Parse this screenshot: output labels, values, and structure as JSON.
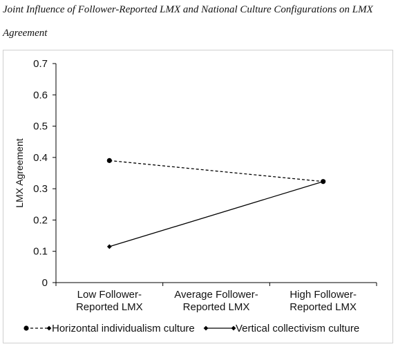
{
  "caption": {
    "line1": "Joint Influence of Follower-Reported LMX and National Culture Configurations on LMX",
    "line2": "Agreement"
  },
  "chart_data": {
    "type": "line",
    "categories": [
      [
        "Low Follower-",
        "Reported LMX"
      ],
      [
        "Average Follower-",
        "Reported LMX"
      ],
      [
        "High Follower-",
        "Reported LMX"
      ]
    ],
    "ylabel": "LMX Agreement",
    "xlabel": "",
    "ylim": [
      0,
      0.7
    ],
    "yticks": [
      0,
      0.1,
      0.2,
      0.3,
      0.4,
      0.5,
      0.6,
      0.7
    ],
    "ytick_labels": [
      "0",
      "0.1",
      "0.2",
      "0.3",
      "0.4",
      "0.5",
      "0.6",
      "0.7"
    ],
    "grid": false,
    "legend_position": "bottom",
    "series": [
      {
        "name": "Horizontal individualism culture",
        "style": "dashed",
        "marker": "circle",
        "color": "#000000",
        "points": [
          {
            "x": 0,
            "y": 0.39
          },
          {
            "x": 2,
            "y": 0.323
          }
        ]
      },
      {
        "name": "Vertical collectivism culture",
        "style": "solid",
        "marker": "diamond",
        "color": "#000000",
        "points": [
          {
            "x": 0,
            "y": 0.115
          },
          {
            "x": 2,
            "y": 0.323
          }
        ]
      }
    ]
  }
}
